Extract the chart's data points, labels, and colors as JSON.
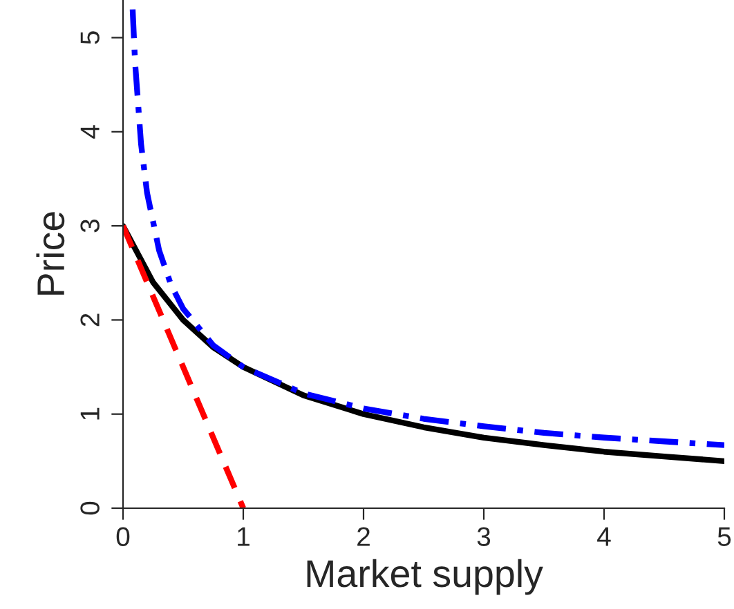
{
  "chart_data": {
    "type": "line",
    "xlabel": "Market supply",
    "ylabel": "Price",
    "xlim": [
      0,
      5
    ],
    "ylim": [
      0,
      5.4
    ],
    "xticks": [
      0,
      1,
      2,
      3,
      4,
      5
    ],
    "yticks": [
      0,
      1,
      2,
      3,
      4,
      5
    ],
    "grid": false,
    "legend": false,
    "series": [
      {
        "color": "#000000",
        "line_style": "solid",
        "x": [
          0,
          0.25,
          0.5,
          0.75,
          1,
          1.5,
          2,
          2.5,
          3,
          3.5,
          4,
          4.5,
          5
        ],
        "values": [
          3,
          2.4,
          2,
          1.71,
          1.5,
          1.2,
          1,
          0.86,
          0.75,
          0.67,
          0.6,
          0.55,
          0.5
        ]
      },
      {
        "color": "#ff0000",
        "line_style": "dashed",
        "x": [
          0,
          1
        ],
        "values": [
          3,
          0
        ]
      },
      {
        "color": "#0000ff",
        "line_style": "dashdot",
        "x": [
          0.08,
          0.1,
          0.15,
          0.2,
          0.3,
          0.4,
          0.5,
          0.75,
          1,
          1.5,
          2,
          2.5,
          3,
          3.5,
          4,
          4.5,
          5
        ],
        "values": [
          5.3,
          4.74,
          3.87,
          3.35,
          2.74,
          2.37,
          2.12,
          1.73,
          1.5,
          1.22,
          1.06,
          0.95,
          0.87,
          0.8,
          0.75,
          0.71,
          0.67
        ]
      }
    ]
  }
}
